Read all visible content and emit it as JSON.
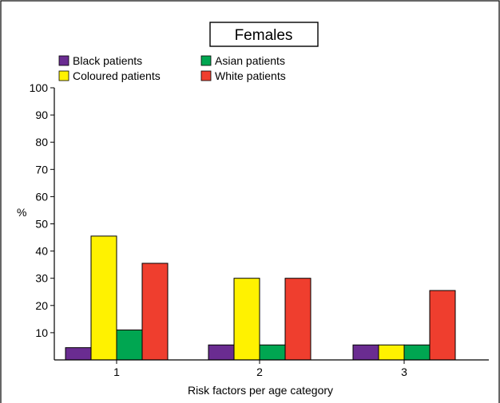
{
  "chart_data": {
    "type": "bar",
    "title": "Females",
    "xlabel": "Risk factors per age category",
    "ylabel": "%",
    "categories": [
      "1",
      "2",
      "3"
    ],
    "ylim": [
      0,
      100
    ],
    "yticks": [
      10,
      20,
      30,
      40,
      50,
      60,
      70,
      80,
      90,
      100
    ],
    "grid": false,
    "legend_position": "top",
    "series": [
      {
        "name": "Black patients",
        "color": "#6a2c91",
        "values": [
          4.5,
          5.5,
          5.5
        ]
      },
      {
        "name": "Coloured patients",
        "color": "#fff200",
        "values": [
          45.5,
          30,
          5.5
        ]
      },
      {
        "name": "Asian patients",
        "color": "#00a651",
        "values": [
          11,
          5.5,
          5.5
        ]
      },
      {
        "name": "White patients",
        "color": "#ef3e2e",
        "values": [
          35.5,
          30,
          25.5
        ]
      }
    ]
  }
}
